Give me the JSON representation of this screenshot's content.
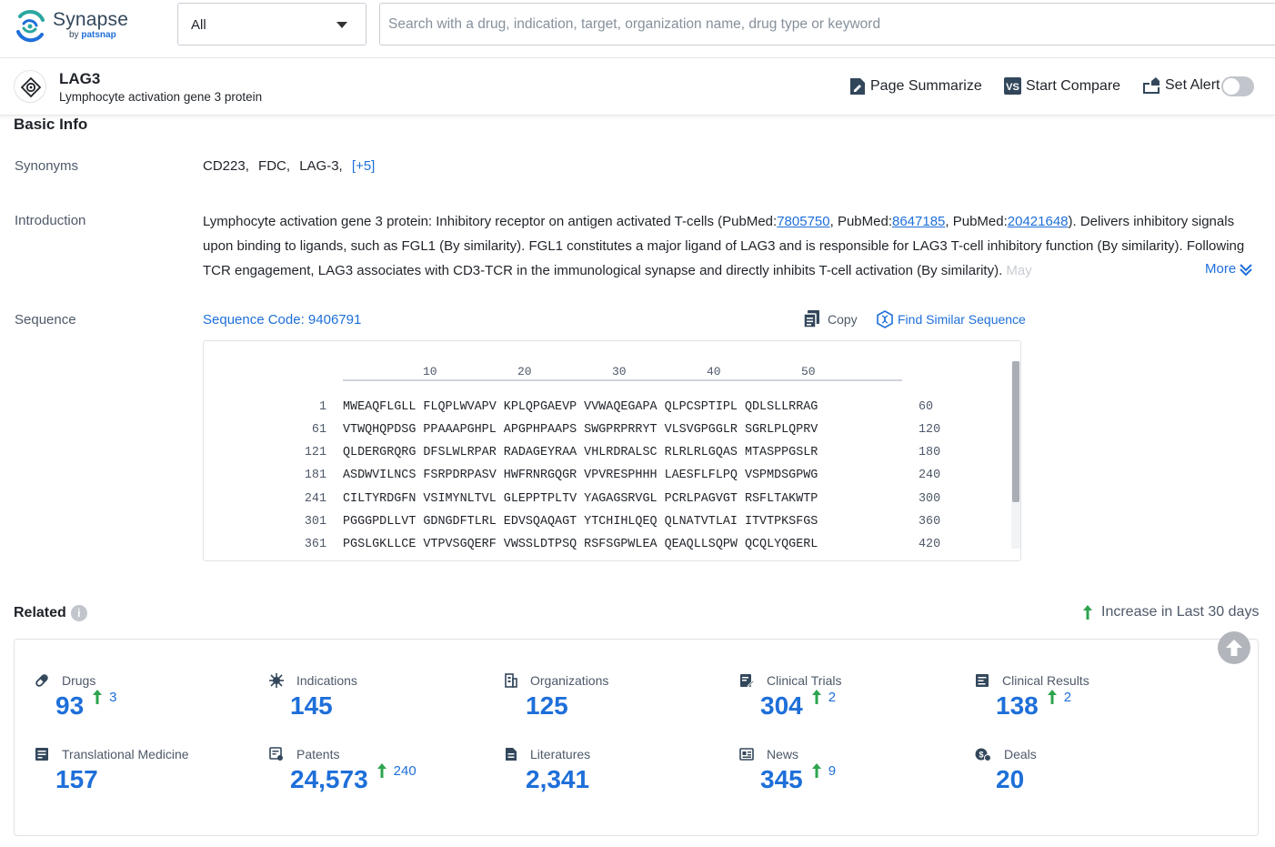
{
  "app": {
    "logo_name": "Synapse",
    "logo_by": "by",
    "logo_brand": "patsnap"
  },
  "search": {
    "scope": "All",
    "placeholder": "Search with a drug, indication, target, organization name, drug type or keyword"
  },
  "entity": {
    "name": "LAG3",
    "full_name": "Lymphocyte activation gene 3 protein",
    "icon": "target-icon",
    "actions": {
      "summarize": "Page Summarize",
      "compare": "Start Compare",
      "alert": "Set Alert"
    },
    "alert_on": false
  },
  "basic_info": {
    "title": "Basic Info",
    "synonyms_label": "Synonyms",
    "synonyms": [
      "CD223,",
      "FDC,",
      "LAG-3,"
    ],
    "synonyms_more": "[+5]",
    "introduction_label": "Introduction",
    "intro": {
      "p1": "Lymphocyte activation gene 3 protein: Inhibitory receptor on antigen activated T-cells (PubMed:",
      "link1": "7805750",
      "p2": ", PubMed:",
      "link2": "8647185",
      "p3": ", PubMed:",
      "link3": "20421648",
      "p4": "). Delivers inhibitory signals upon binding to ligands, such as FGL1 (By similarity). FGL1 constitutes a major ligand of LAG3 and is responsible for LAG3 T-cell inhibitory function (By similarity). Following TCR engagement, LAG3 associates with CD3-TCR in the immunological synapse and directly inhibits T-cell activation (By similarity). ",
      "fade": "May"
    },
    "more_label": "More",
    "sequence_label": "Sequence",
    "sequence_code": "Sequence Code: 9406791",
    "copy_label": "Copy",
    "find_similar_label": "Find Similar Sequence"
  },
  "sequence": {
    "ruler": [
      "10",
      "20",
      "30",
      "40",
      "50"
    ],
    "rows": [
      {
        "start": "1",
        "seq": "MWEAQFLGLL FLQPLWVAPV KPLQPGAEVP VVWAQEGAPA QLPCSPTIPL QDLSLLRRAG",
        "end": "60"
      },
      {
        "start": "61",
        "seq": "VTWQHQPDSG PPAAAPGHPL APGPHPAAPS SWGPRPRRYT VLSVGPGGLR SGRLPLQPRV",
        "end": "120"
      },
      {
        "start": "121",
        "seq": "QLDERGRQRG DFSLWLRPAR RADAGEYRAA VHLRDRALSC RLRLRLGQAS MTASPPGSLR",
        "end": "180"
      },
      {
        "start": "181",
        "seq": "ASDWVILNCS FSRPDRPASV HWFRNRGQGR VPVRESPHHH LAESFLFLPQ VSPMDSGPWG",
        "end": "240"
      },
      {
        "start": "241",
        "seq": "CILTYRDGFN VSIMYNLTVL GLEPPTPLTV YAGAGSRVGL PCRLPAGVGT RSFLTAKWTP",
        "end": "300"
      },
      {
        "start": "301",
        "seq": "PGGGPDLLVT GDNGDFTLRL EDVSQAQAGT YTCHIHLQEQ QLNATVTLAI ITVTPKSFGS",
        "end": "360"
      },
      {
        "start": "361",
        "seq": "PGSLGKLLCE VTPVSGQERF VWSSLDTPSQ RSFSGPWLEA QEAQLLSQPW QCQLYQGERL",
        "end": "420"
      }
    ]
  },
  "related": {
    "title": "Related",
    "info_icon": "info-icon",
    "legend": "Increase in Last 30 days",
    "stats": [
      {
        "key": "drugs",
        "label": "Drugs",
        "icon": "pill-icon",
        "value": "93",
        "increase": "3"
      },
      {
        "key": "indications",
        "label": "Indications",
        "icon": "virus-icon",
        "value": "145",
        "increase": ""
      },
      {
        "key": "organizations",
        "label": "Organizations",
        "icon": "building-icon",
        "value": "125",
        "increase": ""
      },
      {
        "key": "clinical-trials",
        "label": "Clinical Trials",
        "icon": "clipboard-edit-icon",
        "value": "304",
        "increase": "2"
      },
      {
        "key": "clinical-results",
        "label": "Clinical Results",
        "icon": "report-icon",
        "value": "138",
        "increase": "2"
      },
      {
        "key": "translational-medicine",
        "label": "Translational Medicine",
        "icon": "document-list-icon",
        "value": "157",
        "increase": ""
      },
      {
        "key": "patents",
        "label": "Patents",
        "icon": "patent-icon",
        "value": "24,573",
        "increase": "240"
      },
      {
        "key": "literatures",
        "label": "Literatures",
        "icon": "literature-icon",
        "value": "2,341",
        "increase": ""
      },
      {
        "key": "news",
        "label": "News",
        "icon": "news-icon",
        "value": "345",
        "increase": "9"
      },
      {
        "key": "deals",
        "label": "Deals",
        "icon": "deal-icon",
        "value": "20",
        "increase": ""
      }
    ]
  },
  "colors": {
    "accent": "#1e6fd9",
    "increase": "#2da44e",
    "text": "#1f2329",
    "muted": "#4e5969"
  }
}
